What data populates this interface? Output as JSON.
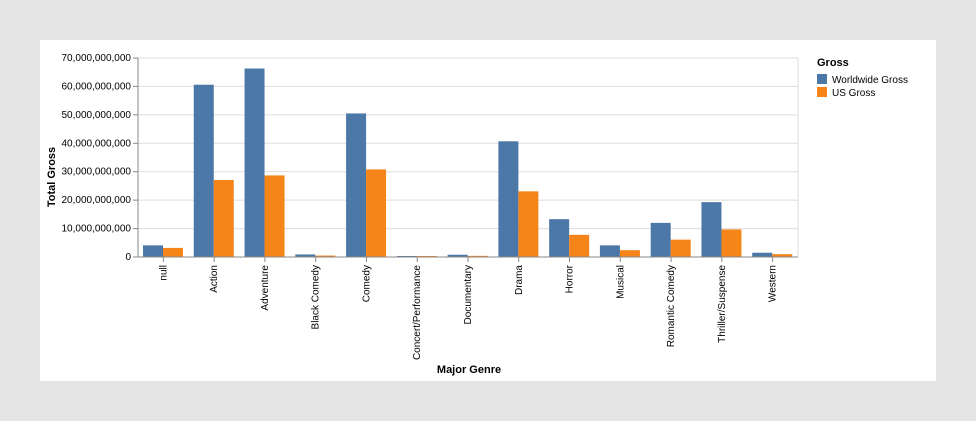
{
  "colors": {
    "worldwide": "#4c78a8",
    "us": "#f58518",
    "grid": "#dddddd",
    "axis": "#888888"
  },
  "chart_data": {
    "type": "bar",
    "xlabel": "Major Genre",
    "ylabel": "Total Gross",
    "ylim": [
      0,
      70000000000
    ],
    "yticks": [
      0,
      10000000000,
      20000000000,
      30000000000,
      40000000000,
      50000000000,
      60000000000,
      70000000000
    ],
    "ytick_labels": [
      "0",
      "10,000,000,000",
      "20,000,000,000",
      "30,000,000,000",
      "40,000,000,000",
      "50,000,000,000",
      "60,000,000,000",
      "70,000,000,000"
    ],
    "grid": true,
    "legend": {
      "title": "Gross",
      "position": "right"
    },
    "categories": [
      "null",
      "Action",
      "Adventure",
      "Black Comedy",
      "Comedy",
      "Concert/Performance",
      "Documentary",
      "Drama",
      "Horror",
      "Musical",
      "Romantic Comedy",
      "Thriller/Suspense",
      "Western"
    ],
    "series": [
      {
        "name": "Worldwide Gross",
        "values": [
          4100000000,
          60600000000,
          66300000000,
          900000000,
          50500000000,
          150000000,
          800000000,
          40700000000,
          13300000000,
          4100000000,
          12000000000,
          19300000000,
          1500000000
        ]
      },
      {
        "name": "US Gross",
        "values": [
          3200000000,
          27100000000,
          28700000000,
          500000000,
          30800000000,
          100000000,
          400000000,
          23100000000,
          7800000000,
          2400000000,
          6100000000,
          9700000000,
          1000000000
        ]
      }
    ]
  }
}
